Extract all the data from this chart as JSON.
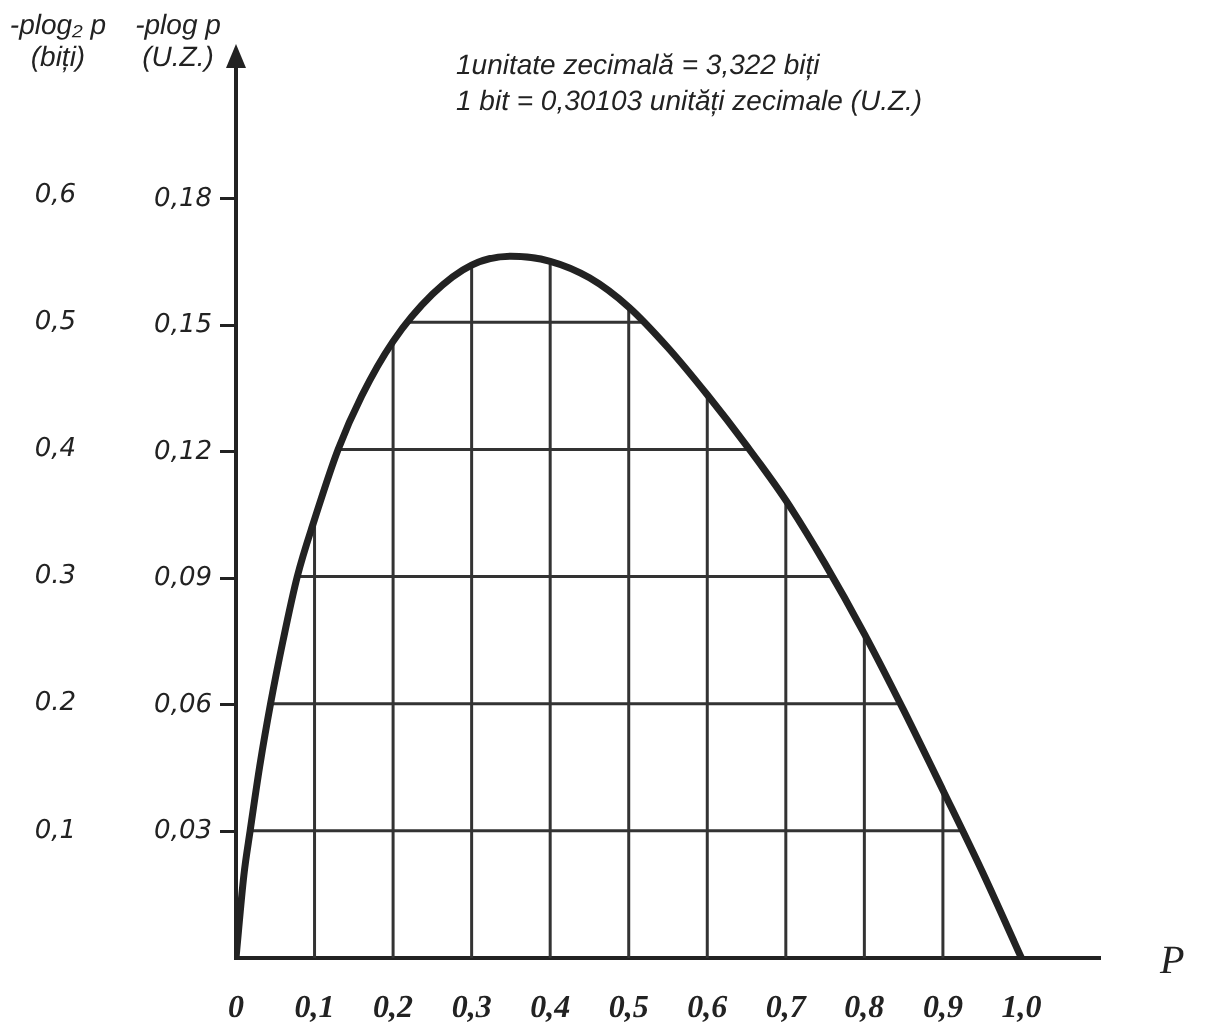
{
  "chart_data": {
    "type": "line",
    "annotations": [
      "1unitate zecimală = 3,322 biți",
      "1 bit = 0,30103 unități zecimale (U.Z.)"
    ],
    "xlabel": "P",
    "ylabel": "-plog₂ p (biți)",
    "y2label": "-plog p (U.Z.)",
    "x": [
      0,
      0.01,
      0.018,
      0.03,
      0.044,
      0.06,
      0.078,
      0.1,
      0.13,
      0.16,
      0.2,
      0.25,
      0.3,
      0.35,
      0.4,
      0.45,
      0.5,
      0.55,
      0.6,
      0.65,
      0.7,
      0.75,
      0.8,
      0.85,
      0.9,
      0.95,
      1.0
    ],
    "values": [
      0,
      0.065,
      0.1,
      0.15,
      0.2,
      0.25,
      0.3,
      0.345,
      0.4,
      0.442,
      0.485,
      0.522,
      0.545,
      0.552,
      0.548,
      0.535,
      0.512,
      0.48,
      0.443,
      0.403,
      0.36,
      0.31,
      0.255,
      0.195,
      0.132,
      0.068,
      0
    ],
    "color": "#222222",
    "xlim": [
      0,
      1.1
    ],
    "xticks": [
      0,
      {
        "value": 0.1,
        "label": "0,1"
      },
      {
        "value": 0.2,
        "label": "0,2"
      },
      {
        "value": 0.3,
        "label": "0,3"
      },
      {
        "value": 0.4,
        "label": "0,4"
      },
      {
        "value": 0.5,
        "label": "0,5"
      },
      {
        "value": 0.6,
        "label": "0,6"
      },
      {
        "value": 0.7,
        "label": "0,7"
      },
      {
        "value": 0.8,
        "label": "0,8"
      },
      {
        "value": 0.9,
        "label": "0,9"
      },
      {
        "value": 1.0,
        "label": "1,0"
      }
    ],
    "ylim": [
      0,
      0.7
    ],
    "yticks": [
      {
        "value": 0.1,
        "label": "0,1"
      },
      0.2,
      0.3,
      {
        "value": 0.4,
        "label": "0,4"
      },
      {
        "value": 0.5,
        "label": "0,5"
      },
      {
        "value": 0.6,
        "label": "0,6"
      }
    ],
    "y2lim": [
      0,
      0.211
    ],
    "y2ticks": [
      {
        "value": 0.03,
        "label": "0,03"
      },
      {
        "value": 0.06,
        "label": "0,06"
      },
      {
        "value": 0.09,
        "label": "0,09"
      },
      {
        "value": 0.12,
        "label": "0,12"
      },
      {
        "value": 0.15,
        "label": "0,15"
      },
      {
        "value": 0.18,
        "label": "0,18"
      }
    ],
    "grid": true
  }
}
